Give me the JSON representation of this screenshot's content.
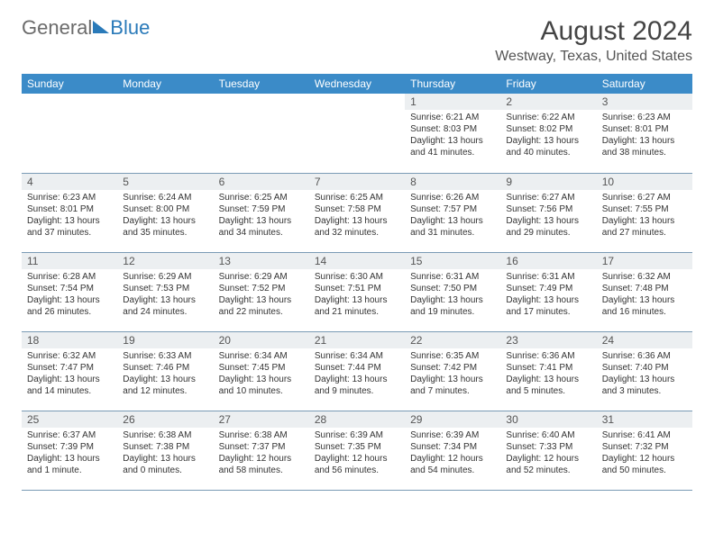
{
  "logo": {
    "part1": "General",
    "part2": "Blue"
  },
  "title": "August 2024",
  "location": "Westway, Texas, United States",
  "colors": {
    "header_bg": "#3b8bc8",
    "daynum_bg": "#eceff1",
    "row_border": "#7a9bb5",
    "accent": "#2a7ab9"
  },
  "day_headers": [
    "Sunday",
    "Monday",
    "Tuesday",
    "Wednesday",
    "Thursday",
    "Friday",
    "Saturday"
  ],
  "weeks": [
    [
      {
        "num": "",
        "lines": [
          "",
          "",
          ""
        ]
      },
      {
        "num": "",
        "lines": [
          "",
          "",
          ""
        ]
      },
      {
        "num": "",
        "lines": [
          "",
          "",
          ""
        ]
      },
      {
        "num": "",
        "lines": [
          "",
          "",
          ""
        ]
      },
      {
        "num": "1",
        "lines": [
          "Sunrise: 6:21 AM",
          "Sunset: 8:03 PM",
          "Daylight: 13 hours and 41 minutes."
        ]
      },
      {
        "num": "2",
        "lines": [
          "Sunrise: 6:22 AM",
          "Sunset: 8:02 PM",
          "Daylight: 13 hours and 40 minutes."
        ]
      },
      {
        "num": "3",
        "lines": [
          "Sunrise: 6:23 AM",
          "Sunset: 8:01 PM",
          "Daylight: 13 hours and 38 minutes."
        ]
      }
    ],
    [
      {
        "num": "4",
        "lines": [
          "Sunrise: 6:23 AM",
          "Sunset: 8:01 PM",
          "Daylight: 13 hours and 37 minutes."
        ]
      },
      {
        "num": "5",
        "lines": [
          "Sunrise: 6:24 AM",
          "Sunset: 8:00 PM",
          "Daylight: 13 hours and 35 minutes."
        ]
      },
      {
        "num": "6",
        "lines": [
          "Sunrise: 6:25 AM",
          "Sunset: 7:59 PM",
          "Daylight: 13 hours and 34 minutes."
        ]
      },
      {
        "num": "7",
        "lines": [
          "Sunrise: 6:25 AM",
          "Sunset: 7:58 PM",
          "Daylight: 13 hours and 32 minutes."
        ]
      },
      {
        "num": "8",
        "lines": [
          "Sunrise: 6:26 AM",
          "Sunset: 7:57 PM",
          "Daylight: 13 hours and 31 minutes."
        ]
      },
      {
        "num": "9",
        "lines": [
          "Sunrise: 6:27 AM",
          "Sunset: 7:56 PM",
          "Daylight: 13 hours and 29 minutes."
        ]
      },
      {
        "num": "10",
        "lines": [
          "Sunrise: 6:27 AM",
          "Sunset: 7:55 PM",
          "Daylight: 13 hours and 27 minutes."
        ]
      }
    ],
    [
      {
        "num": "11",
        "lines": [
          "Sunrise: 6:28 AM",
          "Sunset: 7:54 PM",
          "Daylight: 13 hours and 26 minutes."
        ]
      },
      {
        "num": "12",
        "lines": [
          "Sunrise: 6:29 AM",
          "Sunset: 7:53 PM",
          "Daylight: 13 hours and 24 minutes."
        ]
      },
      {
        "num": "13",
        "lines": [
          "Sunrise: 6:29 AM",
          "Sunset: 7:52 PM",
          "Daylight: 13 hours and 22 minutes."
        ]
      },
      {
        "num": "14",
        "lines": [
          "Sunrise: 6:30 AM",
          "Sunset: 7:51 PM",
          "Daylight: 13 hours and 21 minutes."
        ]
      },
      {
        "num": "15",
        "lines": [
          "Sunrise: 6:31 AM",
          "Sunset: 7:50 PM",
          "Daylight: 13 hours and 19 minutes."
        ]
      },
      {
        "num": "16",
        "lines": [
          "Sunrise: 6:31 AM",
          "Sunset: 7:49 PM",
          "Daylight: 13 hours and 17 minutes."
        ]
      },
      {
        "num": "17",
        "lines": [
          "Sunrise: 6:32 AM",
          "Sunset: 7:48 PM",
          "Daylight: 13 hours and 16 minutes."
        ]
      }
    ],
    [
      {
        "num": "18",
        "lines": [
          "Sunrise: 6:32 AM",
          "Sunset: 7:47 PM",
          "Daylight: 13 hours and 14 minutes."
        ]
      },
      {
        "num": "19",
        "lines": [
          "Sunrise: 6:33 AM",
          "Sunset: 7:46 PM",
          "Daylight: 13 hours and 12 minutes."
        ]
      },
      {
        "num": "20",
        "lines": [
          "Sunrise: 6:34 AM",
          "Sunset: 7:45 PM",
          "Daylight: 13 hours and 10 minutes."
        ]
      },
      {
        "num": "21",
        "lines": [
          "Sunrise: 6:34 AM",
          "Sunset: 7:44 PM",
          "Daylight: 13 hours and 9 minutes."
        ]
      },
      {
        "num": "22",
        "lines": [
          "Sunrise: 6:35 AM",
          "Sunset: 7:42 PM",
          "Daylight: 13 hours and 7 minutes."
        ]
      },
      {
        "num": "23",
        "lines": [
          "Sunrise: 6:36 AM",
          "Sunset: 7:41 PM",
          "Daylight: 13 hours and 5 minutes."
        ]
      },
      {
        "num": "24",
        "lines": [
          "Sunrise: 6:36 AM",
          "Sunset: 7:40 PM",
          "Daylight: 13 hours and 3 minutes."
        ]
      }
    ],
    [
      {
        "num": "25",
        "lines": [
          "Sunrise: 6:37 AM",
          "Sunset: 7:39 PM",
          "Daylight: 13 hours and 1 minute."
        ]
      },
      {
        "num": "26",
        "lines": [
          "Sunrise: 6:38 AM",
          "Sunset: 7:38 PM",
          "Daylight: 13 hours and 0 minutes."
        ]
      },
      {
        "num": "27",
        "lines": [
          "Sunrise: 6:38 AM",
          "Sunset: 7:37 PM",
          "Daylight: 12 hours and 58 minutes."
        ]
      },
      {
        "num": "28",
        "lines": [
          "Sunrise: 6:39 AM",
          "Sunset: 7:35 PM",
          "Daylight: 12 hours and 56 minutes."
        ]
      },
      {
        "num": "29",
        "lines": [
          "Sunrise: 6:39 AM",
          "Sunset: 7:34 PM",
          "Daylight: 12 hours and 54 minutes."
        ]
      },
      {
        "num": "30",
        "lines": [
          "Sunrise: 6:40 AM",
          "Sunset: 7:33 PM",
          "Daylight: 12 hours and 52 minutes."
        ]
      },
      {
        "num": "31",
        "lines": [
          "Sunrise: 6:41 AM",
          "Sunset: 7:32 PM",
          "Daylight: 12 hours and 50 minutes."
        ]
      }
    ]
  ]
}
